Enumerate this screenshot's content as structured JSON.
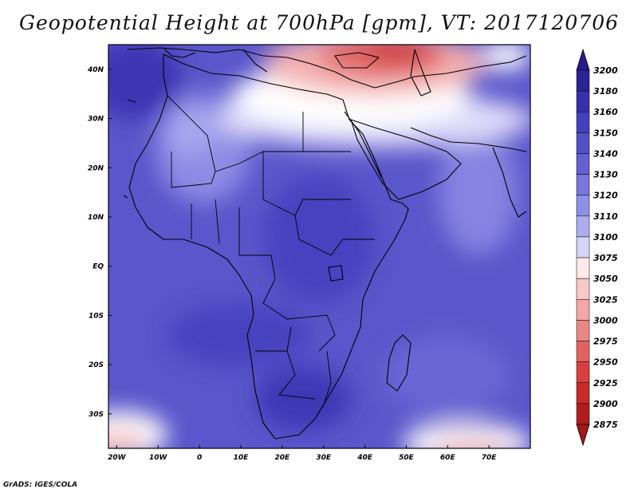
{
  "title": "Geopotential Height at 700hPa [gpm], VT: 2017120706",
  "credit": "GrADS: IGES/COLA",
  "map": {
    "lon_range": [
      -22,
      80
    ],
    "lat_range": [
      -37,
      45
    ],
    "x_ticks": [
      "20W",
      "10W",
      "0",
      "10E",
      "20E",
      "30E",
      "40E",
      "50E",
      "60E",
      "70E"
    ],
    "x_tick_values": [
      -20,
      -10,
      0,
      10,
      20,
      30,
      40,
      50,
      60,
      70
    ],
    "y_ticks": [
      "40N",
      "30N",
      "20N",
      "10N",
      "EQ",
      "10S",
      "20S",
      "30S"
    ],
    "y_tick_values": [
      40,
      30,
      20,
      10,
      0,
      -10,
      -20,
      -30
    ]
  },
  "colorbar": {
    "labels": [
      "3200",
      "3180",
      "3160",
      "3150",
      "3140",
      "3130",
      "3120",
      "3110",
      "3100",
      "3075",
      "3050",
      "3025",
      "3000",
      "2975",
      "2950",
      "2925",
      "2900",
      "2875"
    ],
    "colors": [
      "#2b2296",
      "#3630ad",
      "#4540bd",
      "#5350c8",
      "#6460d2",
      "#7a76dd",
      "#918ee6",
      "#aeabee",
      "#d4d3f8",
      "#ffe8e8",
      "#f8c8c8",
      "#f2a8a8",
      "#ea8686",
      "#e26262",
      "#d84040",
      "#c82a2a",
      "#b01d1d"
    ],
    "arrow_top_color": "#2a1a8e",
    "arrow_bottom_color": "#a21818"
  }
}
